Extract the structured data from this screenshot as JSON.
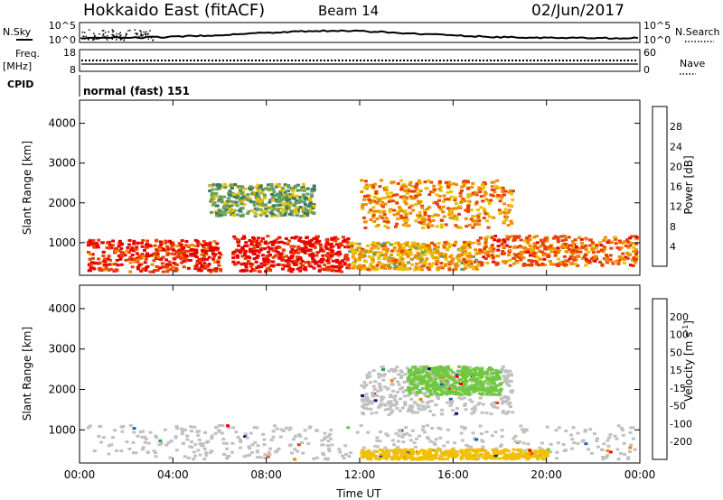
{
  "header": {
    "title": "Hokkaido East (fitACF)",
    "beam": "Beam 14",
    "date": "02/Jun/2017"
  },
  "strips": {
    "nsky_label": "N.Sky",
    "nsearch_label": "N.Search",
    "nsky_ticks": [
      "10^5",
      "10^0"
    ],
    "nsearch_ticks": [
      "10^5",
      "10^0"
    ],
    "freq_label": "Freq.",
    "freq_unit": "[MHz]",
    "freq_ticks": [
      "18",
      "8"
    ],
    "nave_label": "Nave",
    "nave_ticks": [
      "60",
      "0"
    ],
    "cpid_label": "CPID",
    "cpid_value": "normal (fast) 151"
  },
  "chart_data": [
    {
      "type": "heatmap",
      "title": "",
      "xlabel": "Time UT",
      "ylabel": "Slant Range [km]",
      "xticks": [
        "00:00",
        "04:00",
        "08:00",
        "12:00",
        "16:00",
        "20:00",
        "00:00"
      ],
      "xlim_hours": [
        0,
        24
      ],
      "yticks": [
        "1000",
        "2000",
        "3000",
        "4000"
      ],
      "ylim": [
        180,
        4580
      ],
      "colorbar": {
        "label": "Power [dB]",
        "ticks": [
          "28",
          "24",
          "20",
          "16",
          "12",
          "8",
          "4"
        ],
        "range": [
          0,
          32
        ],
        "colors": [
          "#0020e0",
          "#204a9a",
          "#3a7a60",
          "#6aa060",
          "#e8c000",
          "#f08a00",
          "#e84000",
          "#e80000"
        ]
      },
      "regions": [
        {
          "t0": 0.3,
          "t1": 6.0,
          "r0": 300,
          "r1": 1100,
          "level": 28
        },
        {
          "t0": 6.5,
          "t1": 11.5,
          "r0": 300,
          "r1": 1200,
          "level": 30
        },
        {
          "t0": 11.5,
          "t1": 17.0,
          "r0": 350,
          "r1": 1050,
          "level": 20
        },
        {
          "t0": 17.0,
          "t1": 23.8,
          "r0": 450,
          "r1": 1200,
          "level": 24
        },
        {
          "t0": 12.0,
          "t1": 18.5,
          "r0": 1400,
          "r1": 2600,
          "level": 22
        },
        {
          "t0": 5.5,
          "t1": 10.0,
          "r0": 1700,
          "r1": 2500,
          "level": 14
        }
      ]
    },
    {
      "type": "heatmap",
      "title": "",
      "xlabel": "Time UT",
      "ylabel": "Slant Range [km]",
      "xticks": [
        "00:00",
        "04:00",
        "08:00",
        "12:00",
        "16:00",
        "20:00",
        "00:00"
      ],
      "xlim_hours": [
        0,
        24
      ],
      "yticks": [
        "1000",
        "2000",
        "3000",
        "4000"
      ],
      "ylim": [
        180,
        4580
      ],
      "colorbar": {
        "label": "Velocity [m s^-1]",
        "ticks": [
          "200",
          "100",
          "50",
          "15",
          "-15",
          "-50",
          "-100",
          "-200"
        ],
        "colors": [
          "#101080",
          "#2060b0",
          "#30a040",
          "#70c840",
          "#c0c0c0",
          "#f0c000",
          "#f08000",
          "#f04000",
          "#e80000"
        ]
      },
      "regions": [
        {
          "t0": 0.3,
          "t1": 23.8,
          "r0": 300,
          "r1": 1150,
          "value": 0
        },
        {
          "t0": 12.0,
          "t1": 18.5,
          "r0": 1400,
          "r1": 2600,
          "value": 0
        },
        {
          "t0": 14.0,
          "t1": 18.0,
          "r0": 1900,
          "r1": 2600,
          "value": 30
        },
        {
          "t0": 12.0,
          "t1": 20.0,
          "r0": 300,
          "r1": 550,
          "value": -40
        }
      ]
    }
  ]
}
